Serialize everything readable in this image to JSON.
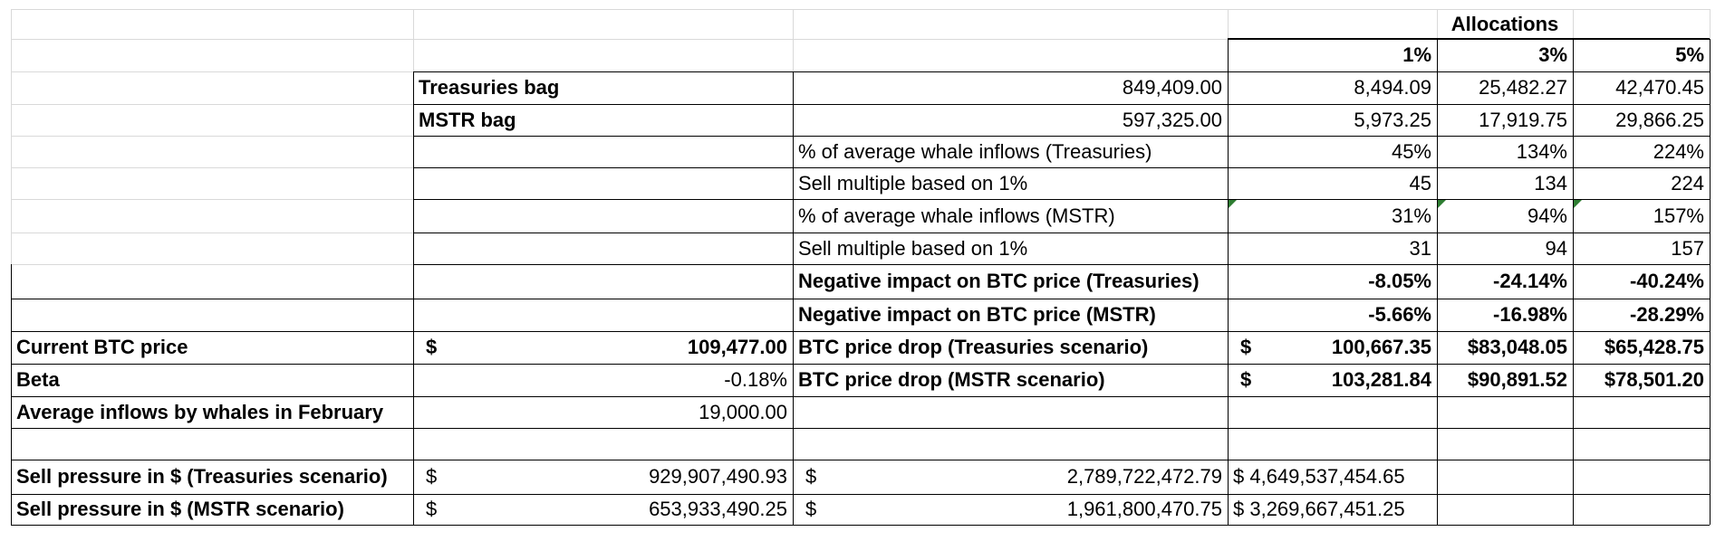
{
  "header": {
    "allocations": "Allocations",
    "pct_1": "1%",
    "pct_3": "3%",
    "pct_5": "5%"
  },
  "bags": {
    "treasuries": {
      "label": "Treasuries bag",
      "value": "849,409.00",
      "a1": "8,494.09",
      "a3": "25,482.27",
      "a5": "42,470.45"
    },
    "mstr": {
      "label": "MSTR bag",
      "value": "597,325.00",
      "a1": "5,973.25",
      "a3": "17,919.75",
      "a5": "29,866.25"
    }
  },
  "metrics": {
    "whale_pct_treasuries": {
      "label": "% of average whale inflows (Treasuries)",
      "a1": "45%",
      "a3": "134%",
      "a5": "224%"
    },
    "sell_mult_1": {
      "label": "Sell multiple based on 1%",
      "a1": "45",
      "a3": "134",
      "a5": "224"
    },
    "whale_pct_mstr": {
      "label": "% of average whale inflows (MSTR)",
      "a1": "31%",
      "a3": "94%",
      "a5": "157%"
    },
    "sell_mult_2": {
      "label": "Sell multiple based on 1%",
      "a1": "31",
      "a3": "94",
      "a5": "157"
    },
    "impact_treasuries": {
      "label": "Negative impact on BTC price (Treasuries)",
      "a1": "-8.05%",
      "a3": "-24.14%",
      "a5": "-40.24%"
    },
    "impact_mstr": {
      "label": "Negative impact on BTC price (MSTR)",
      "a1": "-5.66%",
      "a3": "-16.98%",
      "a5": "-28.29%"
    }
  },
  "inputs": {
    "btc_price": {
      "label": "Current BTC price",
      "currency": "$",
      "value": "109,477.00"
    },
    "beta": {
      "label": "Beta",
      "value": "-0.18%"
    },
    "whale_inflows": {
      "label": "Average inflows by whales in February",
      "value": "19,000.00"
    }
  },
  "drops": {
    "treasuries": {
      "label": "BTC price drop (Treasuries scenario)",
      "currency": "$",
      "a1": "100,667.35",
      "a3": "$83,048.05",
      "a5": "$65,428.75"
    },
    "mstr": {
      "label": "BTC price drop (MSTR scenario)",
      "currency": "$",
      "a1": "103,281.84",
      "a3": "$90,891.52",
      "a5": "$78,501.20"
    }
  },
  "pressure": {
    "treasuries": {
      "label": "Sell pressure in $ (Treasuries scenario)",
      "currency": "$",
      "v1": "929,907,490.93",
      "v2": "2,789,722,472.79",
      "v3": "$ 4,649,537,454.65"
    },
    "mstr": {
      "label": "Sell pressure in $ (MSTR scenario)",
      "currency": "$",
      "v1": "653,933,490.25",
      "v2": "1,961,800,470.75",
      "v3": "$ 3,269,667,451.25"
    }
  }
}
